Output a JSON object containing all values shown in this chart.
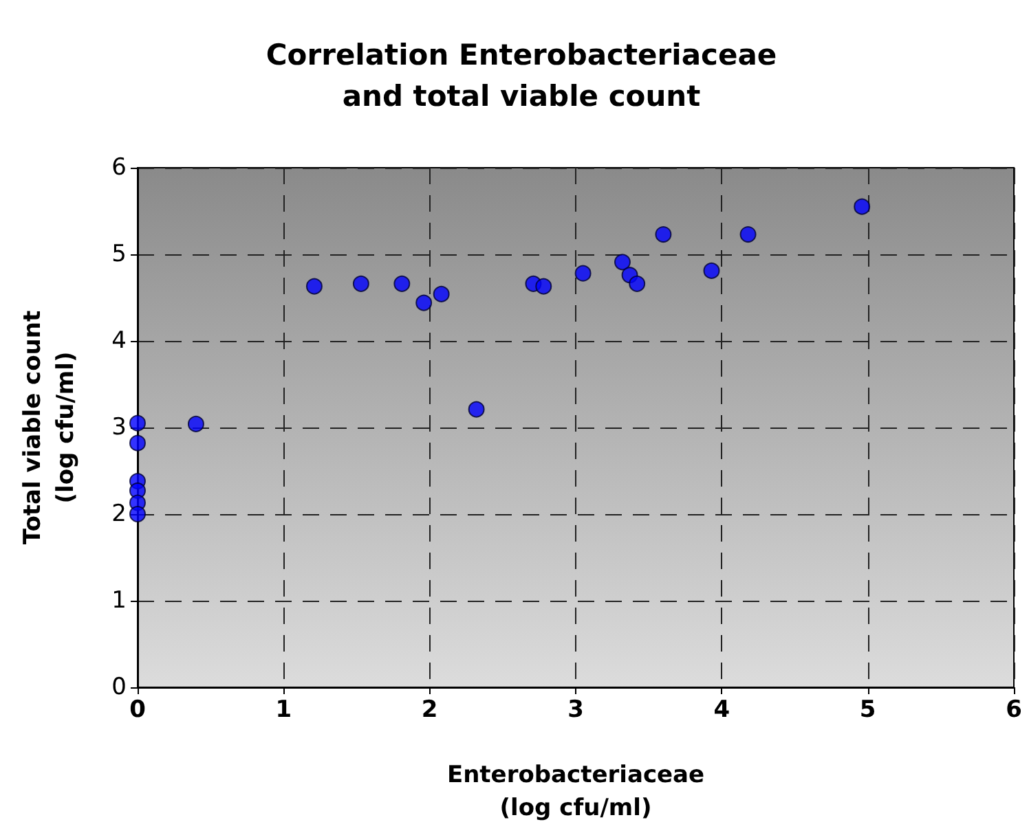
{
  "chart_data": {
    "type": "scatter",
    "title": "Correlation Enterobacteriaceae\nand total viable count",
    "xlabel": "Enterobacteriaceae\n(log cfu/ml)",
    "ylabel": "Total viable count\n(log cfu/ml)",
    "x": [
      0,
      0,
      0,
      0,
      0,
      0,
      0.4,
      1.21,
      1.53,
      1.81,
      1.96,
      2.08,
      2.32,
      2.71,
      2.78,
      3.05,
      3.32,
      3.37,
      3.42,
      3.6,
      3.93,
      4.18,
      4.96
    ],
    "series": [
      {
        "color": "#0000ff",
        "values": [
          3.05,
          2.82,
          2.38,
          2.27,
          2.13,
          2.0,
          3.04,
          4.63,
          4.66,
          4.66,
          4.44,
          4.54,
          3.21,
          4.66,
          4.63,
          4.78,
          4.91,
          4.76,
          4.66,
          5.23,
          4.81,
          5.23,
          5.55
        ]
      }
    ],
    "xlim": [
      0,
      6
    ],
    "xticks": [
      0,
      1,
      2,
      3,
      4,
      5,
      6
    ],
    "ylim": [
      0,
      6
    ],
    "yticks": [
      0,
      1,
      2,
      3,
      4,
      5,
      6
    ],
    "grid": true,
    "marker": "circle"
  }
}
